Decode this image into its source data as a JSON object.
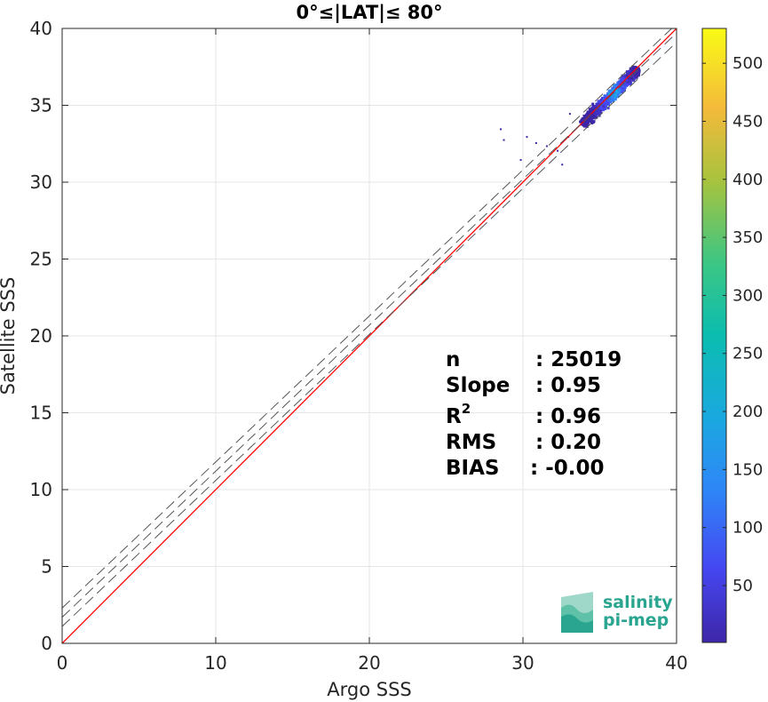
{
  "chart_data": {
    "type": "heatmap",
    "title": "0°≤|LAT|≤ 80°",
    "xlabel": "Argo SSS",
    "ylabel": "Satellite SSS",
    "xlim": [
      0,
      40
    ],
    "ylim": [
      0,
      40
    ],
    "xticks": [
      "0",
      "10",
      "20",
      "30",
      "40"
    ],
    "yticks": [
      "0",
      "5",
      "10",
      "15",
      "20",
      "25",
      "30",
      "35",
      "40"
    ],
    "grid": true,
    "colorbar": {
      "range": [
        1,
        530
      ],
      "ticks": [
        "50",
        "100",
        "150",
        "200",
        "250",
        "300",
        "350",
        "400",
        "450",
        "500"
      ],
      "colormap": "parula"
    },
    "lines": [
      {
        "name": "identity",
        "color": "#ff0000",
        "style": "solid",
        "points": [
          [
            0,
            0
          ],
          [
            40,
            40
          ]
        ]
      },
      {
        "name": "regression",
        "color": "#555555",
        "style": "dashed",
        "points": [
          [
            0,
            1.7
          ],
          [
            40,
            39.7
          ]
        ]
      },
      {
        "name": "upper-bound",
        "color": "#555555",
        "style": "dashed",
        "points": [
          [
            0,
            2.3
          ],
          [
            40,
            40.3
          ]
        ]
      },
      {
        "name": "lower-bound",
        "color": "#555555",
        "style": "dashed",
        "points": [
          [
            0,
            1.1
          ],
          [
            40,
            39.1
          ]
        ]
      }
    ],
    "density_cluster": {
      "x_range": [
        33.5,
        37.5
      ],
      "y_range": [
        33.2,
        37.6
      ],
      "peak": [
        35.8,
        35.9
      ],
      "outliers": [
        [
          28.5,
          33.5
        ],
        [
          28.7,
          32.8
        ],
        [
          30.2,
          33.0
        ],
        [
          30.8,
          32.6
        ],
        [
          31.5,
          32.4
        ],
        [
          32.2,
          32.1
        ],
        [
          32.5,
          31.2
        ],
        [
          32.9,
          33.0
        ],
        [
          33.0,
          34.5
        ],
        [
          29.8,
          31.5
        ]
      ]
    },
    "stats": [
      {
        "label": "n",
        "value": ": 25019"
      },
      {
        "label": "Slope",
        "value": ": 0.95"
      },
      {
        "label": "R",
        "sup": "2",
        "value": ": 0.96"
      },
      {
        "label": "RMS",
        "value": ": 0.20"
      },
      {
        "label": "BIAS",
        "value": ": -0.00"
      }
    ]
  },
  "logo": {
    "line1": "salinity",
    "line2": "pi-mep",
    "color": "#2aa58f"
  }
}
